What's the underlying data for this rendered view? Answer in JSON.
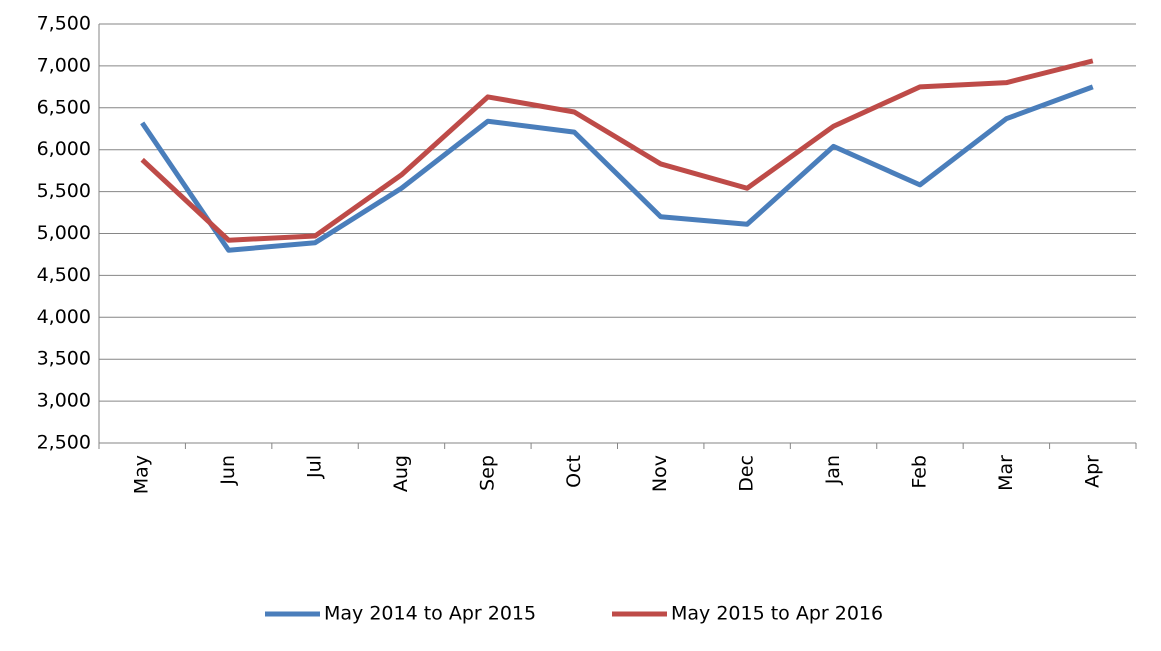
{
  "chart_data": {
    "type": "line",
    "categories": [
      "May",
      "Jun",
      "Jul",
      "Aug",
      "Sep",
      "Oct",
      "Nov",
      "Dec",
      "Jan",
      "Feb",
      "Mar",
      "Apr"
    ],
    "series": [
      {
        "name": "May 2014 to Apr 2015",
        "color": "#4a7ebb",
        "values": [
          6320,
          4800,
          4890,
          5540,
          6340,
          6210,
          5200,
          5110,
          6040,
          5580,
          6370,
          6750
        ]
      },
      {
        "name": "May 2015 to Apr 2016",
        "color": "#be4b48",
        "values": [
          5880,
          4920,
          4970,
          5700,
          6630,
          6450,
          5830,
          5540,
          6280,
          6750,
          6800,
          7060
        ]
      }
    ],
    "ylim": [
      2500,
      7500
    ],
    "yticks": [
      {
        "value": 2500,
        "label": "2,500"
      },
      {
        "value": 3000,
        "label": "3,000"
      },
      {
        "value": 3500,
        "label": "3,500"
      },
      {
        "value": 4000,
        "label": "4,000"
      },
      {
        "value": 4500,
        "label": "4,500"
      },
      {
        "value": 5000,
        "label": "5,000"
      },
      {
        "value": 5500,
        "label": "5,500"
      },
      {
        "value": 6000,
        "label": "6,000"
      },
      {
        "value": 6500,
        "label": "6,500"
      },
      {
        "value": 7000,
        "label": "7,000"
      },
      {
        "value": 7500,
        "label": "7,500"
      }
    ],
    "grid": true,
    "legend": "bottom"
  }
}
